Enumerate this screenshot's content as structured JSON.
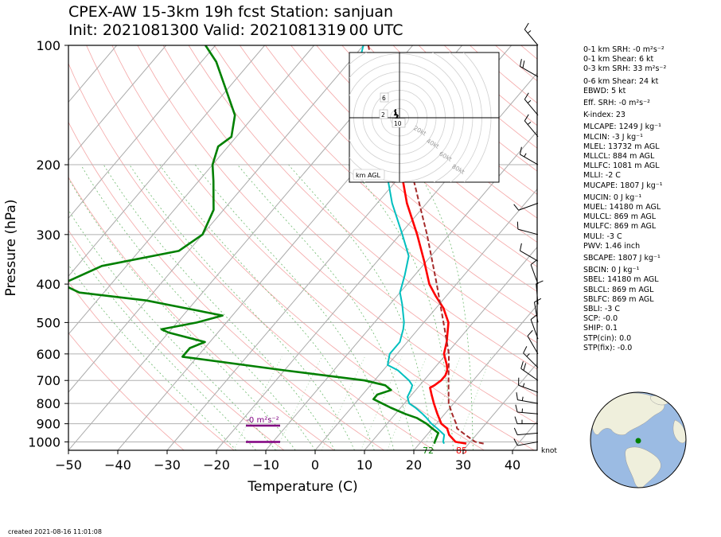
{
  "title": {
    "line1": "CPEX-AW 15-3km  19h fcst  Station: sanjuan",
    "line2": "Init: 2021081300  Valid: 2021081319 00 UTC"
  },
  "created": "created 2021-08-16 11:01:08",
  "indices": [
    "0-1 km SRH: -0 m²s⁻²",
    "0-1 km Shear: 6 kt",
    "0-3 km SRH: 33 m²s⁻²",
    "0-6 km Shear: 24 kt",
    "EBWD: 5 kt",
    "Eff. SRH: -0 m²s⁻²",
    "K-index: 23",
    "MLCAPE: 1249 J kg⁻¹",
    "MLCIN: -3 J kg⁻¹",
    "MLEL: 13732 m AGL",
    "MLLCL: 884 m AGL",
    "MLLFC: 1081 m AGL",
    "MLLI: -2 C",
    "MUCAPE: 1807 J kg⁻¹",
    "MUCIN: 0 J kg⁻¹",
    "MUEL: 14180 m AGL",
    "MULCL: 869 m AGL",
    "MULFC: 869 m AGL",
    "MULI: -3 C",
    "PWV: 1.46 inch",
    "SBCAPE: 1807 J kg⁻¹",
    "SBCIN: 0 J kg⁻¹",
    "SBEL: 14180 m AGL",
    "SBLCL: 869 m AGL",
    "SBLFC: 869 m AGL",
    "SBLI: -3 C",
    "SCP: -0.0",
    "SHIP: 0.1",
    "STP(cin): 0.0",
    "STP(fix): -0.0"
  ],
  "chart_data": {
    "type": "line",
    "subtype": "skew-T log-P",
    "xlabel": "Temperature (C)",
    "ylabel": "Pressure (hPa)",
    "xlim": [
      -50,
      45
    ],
    "ylim": [
      1050,
      100
    ],
    "xticks": [
      -50,
      -40,
      -30,
      -20,
      -10,
      0,
      10,
      20,
      30,
      40
    ],
    "yticks": [
      100,
      200,
      300,
      400,
      500,
      600,
      700,
      800,
      900,
      1000
    ],
    "grid": true,
    "surface_temp_label": "85",
    "surface_dewpoint_label": "72",
    "srh_label": "-0 m²s⁻²",
    "barb_units": "knot",
    "colors": {
      "temperature": "#ff0000",
      "dewpoint": "#008000",
      "wetbulb": "#00bfbf",
      "parcel": "#a52a2a",
      "srh_bar": "#800080",
      "dry_adiabat": "#f4a6a6",
      "moist_adiabat": "#6fba6f",
      "isotherm": "#aaaaaa"
    },
    "series": [
      {
        "name": "temperature",
        "points": [
          [
            1010,
            29.5
          ],
          [
            1000,
            27
          ],
          [
            960,
            24.5
          ],
          [
            925,
            23
          ],
          [
            900,
            21
          ],
          [
            850,
            18.5
          ],
          [
            800,
            16
          ],
          [
            760,
            14
          ],
          [
            730,
            12.5
          ],
          [
            720,
            13
          ],
          [
            700,
            13.5
          ],
          [
            680,
            13.5
          ],
          [
            660,
            13
          ],
          [
            640,
            12
          ],
          [
            600,
            9.5
          ],
          [
            560,
            8
          ],
          [
            500,
            5
          ],
          [
            460,
            1.5
          ],
          [
            430,
            -2
          ],
          [
            400,
            -5.5
          ],
          [
            350,
            -10.5
          ],
          [
            300,
            -16.5
          ],
          [
            250,
            -24
          ],
          [
            200,
            -32
          ],
          [
            150,
            -43
          ],
          [
            125,
            -50
          ]
        ]
      },
      {
        "name": "dewpoint",
        "points": [
          [
            1010,
            23
          ],
          [
            1000,
            22.8
          ],
          [
            950,
            22
          ],
          [
            925,
            20
          ],
          [
            900,
            18
          ],
          [
            870,
            15
          ],
          [
            850,
            12
          ],
          [
            820,
            8
          ],
          [
            800,
            5.5
          ],
          [
            780,
            3
          ],
          [
            760,
            3
          ],
          [
            740,
            5
          ],
          [
            720,
            3
          ],
          [
            700,
            -2
          ],
          [
            660,
            -20
          ],
          [
            610,
            -43
          ],
          [
            580,
            -43
          ],
          [
            560,
            -41
          ],
          [
            530,
            -50
          ],
          [
            520,
            -52
          ],
          [
            500,
            -46
          ],
          [
            480,
            -42
          ],
          [
            440,
            -60
          ],
          [
            420,
            -75
          ],
          [
            400,
            -80
          ],
          [
            360,
            -75
          ],
          [
            330,
            -62
          ],
          [
            300,
            -60
          ],
          [
            260,
            -62
          ],
          [
            220,
            -67
          ],
          [
            200,
            -70
          ],
          [
            180,
            -72
          ],
          [
            170,
            -71
          ],
          [
            150,
            -74
          ],
          [
            130,
            -80
          ],
          [
            110,
            -87
          ],
          [
            100,
            -92
          ]
        ]
      },
      {
        "name": "wetbulb",
        "points": [
          [
            1010,
            25
          ],
          [
            1000,
            24.5
          ],
          [
            960,
            23.5
          ],
          [
            925,
            21
          ],
          [
            900,
            19
          ],
          [
            870,
            17
          ],
          [
            850,
            15.5
          ],
          [
            820,
            13
          ],
          [
            800,
            11
          ],
          [
            770,
            9.5
          ],
          [
            740,
            9
          ],
          [
            720,
            8.5
          ],
          [
            700,
            7
          ],
          [
            660,
            3
          ],
          [
            640,
            0
          ],
          [
            600,
            -1.5
          ],
          [
            560,
            -1.5
          ],
          [
            520,
            -3
          ],
          [
            500,
            -4
          ],
          [
            450,
            -7.5
          ],
          [
            420,
            -10
          ],
          [
            380,
            -12
          ],
          [
            340,
            -14.5
          ],
          [
            300,
            -19.5
          ],
          [
            250,
            -27
          ],
          [
            200,
            -35
          ],
          [
            170,
            -41
          ],
          [
            150,
            -47
          ],
          [
            130,
            -53
          ],
          [
            110,
            -58
          ],
          [
            100,
            -60
          ]
        ]
      },
      {
        "name": "parcel",
        "points": [
          [
            1010,
            33
          ],
          [
            1000,
            31
          ],
          [
            950,
            27
          ],
          [
            925,
            25
          ],
          [
            900,
            24
          ],
          [
            850,
            21.5
          ],
          [
            800,
            19
          ],
          [
            700,
            15
          ],
          [
            600,
            10.5
          ],
          [
            500,
            4
          ],
          [
            400,
            -4
          ],
          [
            300,
            -14.5
          ],
          [
            250,
            -21.5
          ],
          [
            200,
            -30
          ],
          [
            150,
            -42.5
          ],
          [
            110,
            -55.5
          ],
          [
            100,
            -59
          ]
        ]
      }
    ],
    "srh_markers": [
      {
        "pressure": 1000,
        "value": 0
      },
      {
        "pressure": 910,
        "value": 0
      }
    ],
    "wind_barbs": [
      {
        "p": 1000,
        "dir": 260,
        "spd": 8
      },
      {
        "p": 950,
        "dir": 265,
        "spd": 12
      },
      {
        "p": 900,
        "dir": 270,
        "spd": 15
      },
      {
        "p": 850,
        "dir": 275,
        "spd": 15
      },
      {
        "p": 800,
        "dir": 280,
        "spd": 15
      },
      {
        "p": 750,
        "dir": 290,
        "spd": 15
      },
      {
        "p": 700,
        "dir": 305,
        "spd": 20
      },
      {
        "p": 650,
        "dir": 315,
        "spd": 15
      },
      {
        "p": 600,
        "dir": 330,
        "spd": 12
      },
      {
        "p": 550,
        "dir": 340,
        "spd": 10
      },
      {
        "p": 500,
        "dir": 350,
        "spd": 10
      },
      {
        "p": 450,
        "dir": 355,
        "spd": 8
      },
      {
        "p": 400,
        "dir": 340,
        "spd": 10
      },
      {
        "p": 350,
        "dir": 300,
        "spd": 12
      },
      {
        "p": 300,
        "dir": 285,
        "spd": 10
      },
      {
        "p": 250,
        "dir": 250,
        "spd": 10
      },
      {
        "p": 200,
        "dir": 300,
        "spd": 15
      },
      {
        "p": 170,
        "dir": 320,
        "spd": 15
      },
      {
        "p": 150,
        "dir": 320,
        "spd": 15
      },
      {
        "p": 120,
        "dir": 300,
        "spd": 20
      },
      {
        "p": 100,
        "dir": 320,
        "spd": 15
      }
    ],
    "hodograph": {
      "ring_labels": [
        "20kt",
        "40kt",
        "60kt",
        "80kt"
      ],
      "height_labels": [
        "6",
        "2",
        "10"
      ],
      "footer": "km AGL",
      "points": [
        [
          -4,
          4
        ],
        [
          -5,
          2
        ],
        [
          -4,
          0
        ],
        [
          -5,
          -2
        ],
        [
          -3,
          -2
        ],
        [
          -2,
          -3
        ],
        [
          -3,
          -5
        ],
        [
          -4,
          -6
        ],
        [
          -2,
          -8
        ],
        [
          -1,
          -7
        ],
        [
          -3,
          -5
        ],
        [
          -2,
          -3
        ]
      ]
    },
    "globe": {
      "marker_color": "#008000"
    }
  }
}
